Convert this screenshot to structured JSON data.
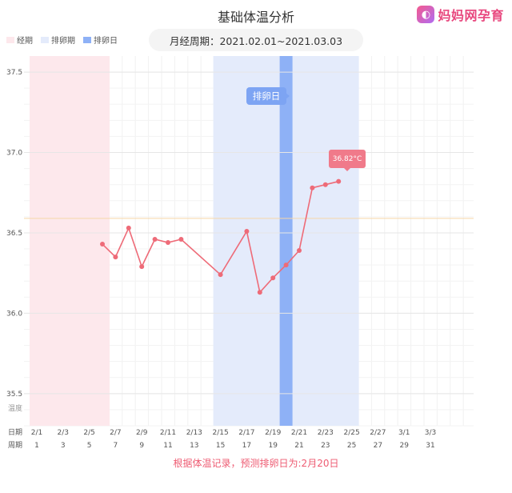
{
  "title": "基础体温分析",
  "logo": {
    "text": "妈妈网孕育",
    "icon": "mama-logo-icon"
  },
  "legend": [
    {
      "label": "经期",
      "color": "#fde8ec"
    },
    {
      "label": "排卵期",
      "color": "#e4ebfb"
    },
    {
      "label": "排卵日",
      "color": "#8eb1f6"
    }
  ],
  "period_label": "月经周期：2021.02.01~2021.03.03",
  "footer": "根据体温记录，预测排卵日为:2月20日",
  "ovulation_tooltip": "排卵日",
  "value_label": "36.82°C",
  "row_labels": {
    "temp": "温度",
    "date": "日期",
    "cycle": "周期"
  },
  "colors": {
    "line": "#ee6b78",
    "period": "#fde8ec",
    "ovulation_window": "#e4ebfb",
    "ovulation_day": "#8eb1f6",
    "footer": "#ee5b72"
  },
  "chart_data": {
    "type": "line",
    "title": "基础体温分析",
    "ylim": [
      35.3,
      37.6
    ],
    "yticks": [
      35.5,
      36.0,
      36.5,
      37.0,
      37.5
    ],
    "reference_line": 36.59,
    "grid": true,
    "legend_position": "top-left",
    "x_dates": [
      "2/1",
      "2/3",
      "2/5",
      "2/7",
      "2/9",
      "2/11",
      "2/13",
      "2/15",
      "2/17",
      "2/19",
      "2/21",
      "2/23",
      "2/25",
      "2/27",
      "3/1",
      "3/3"
    ],
    "x_cycle_days": [
      1,
      3,
      5,
      7,
      9,
      11,
      13,
      15,
      17,
      19,
      21,
      23,
      25,
      27,
      29,
      31
    ],
    "x_day_range": [
      1,
      33
    ],
    "period_days": [
      1,
      6
    ],
    "ovulation_window_days": [
      15,
      25
    ],
    "ovulation_day": 20,
    "series": [
      {
        "points": [
          {
            "day": 6,
            "value": 36.43
          },
          {
            "day": 7,
            "value": 36.35
          },
          {
            "day": 8,
            "value": 36.53
          },
          {
            "day": 9,
            "value": 36.29
          },
          {
            "day": 10,
            "value": 36.46
          },
          {
            "day": 11,
            "value": 36.44
          },
          {
            "day": 12,
            "value": 36.46
          },
          {
            "day": 15,
            "value": 36.24
          },
          {
            "day": 17,
            "value": 36.51
          },
          {
            "day": 18,
            "value": 36.13
          },
          {
            "day": 19,
            "value": 36.22
          },
          {
            "day": 20,
            "value": 36.3
          },
          {
            "day": 21,
            "value": 36.39
          },
          {
            "day": 22,
            "value": 36.78
          },
          {
            "day": 23,
            "value": 36.8
          },
          {
            "day": 24,
            "value": 36.82
          }
        ]
      }
    ]
  }
}
